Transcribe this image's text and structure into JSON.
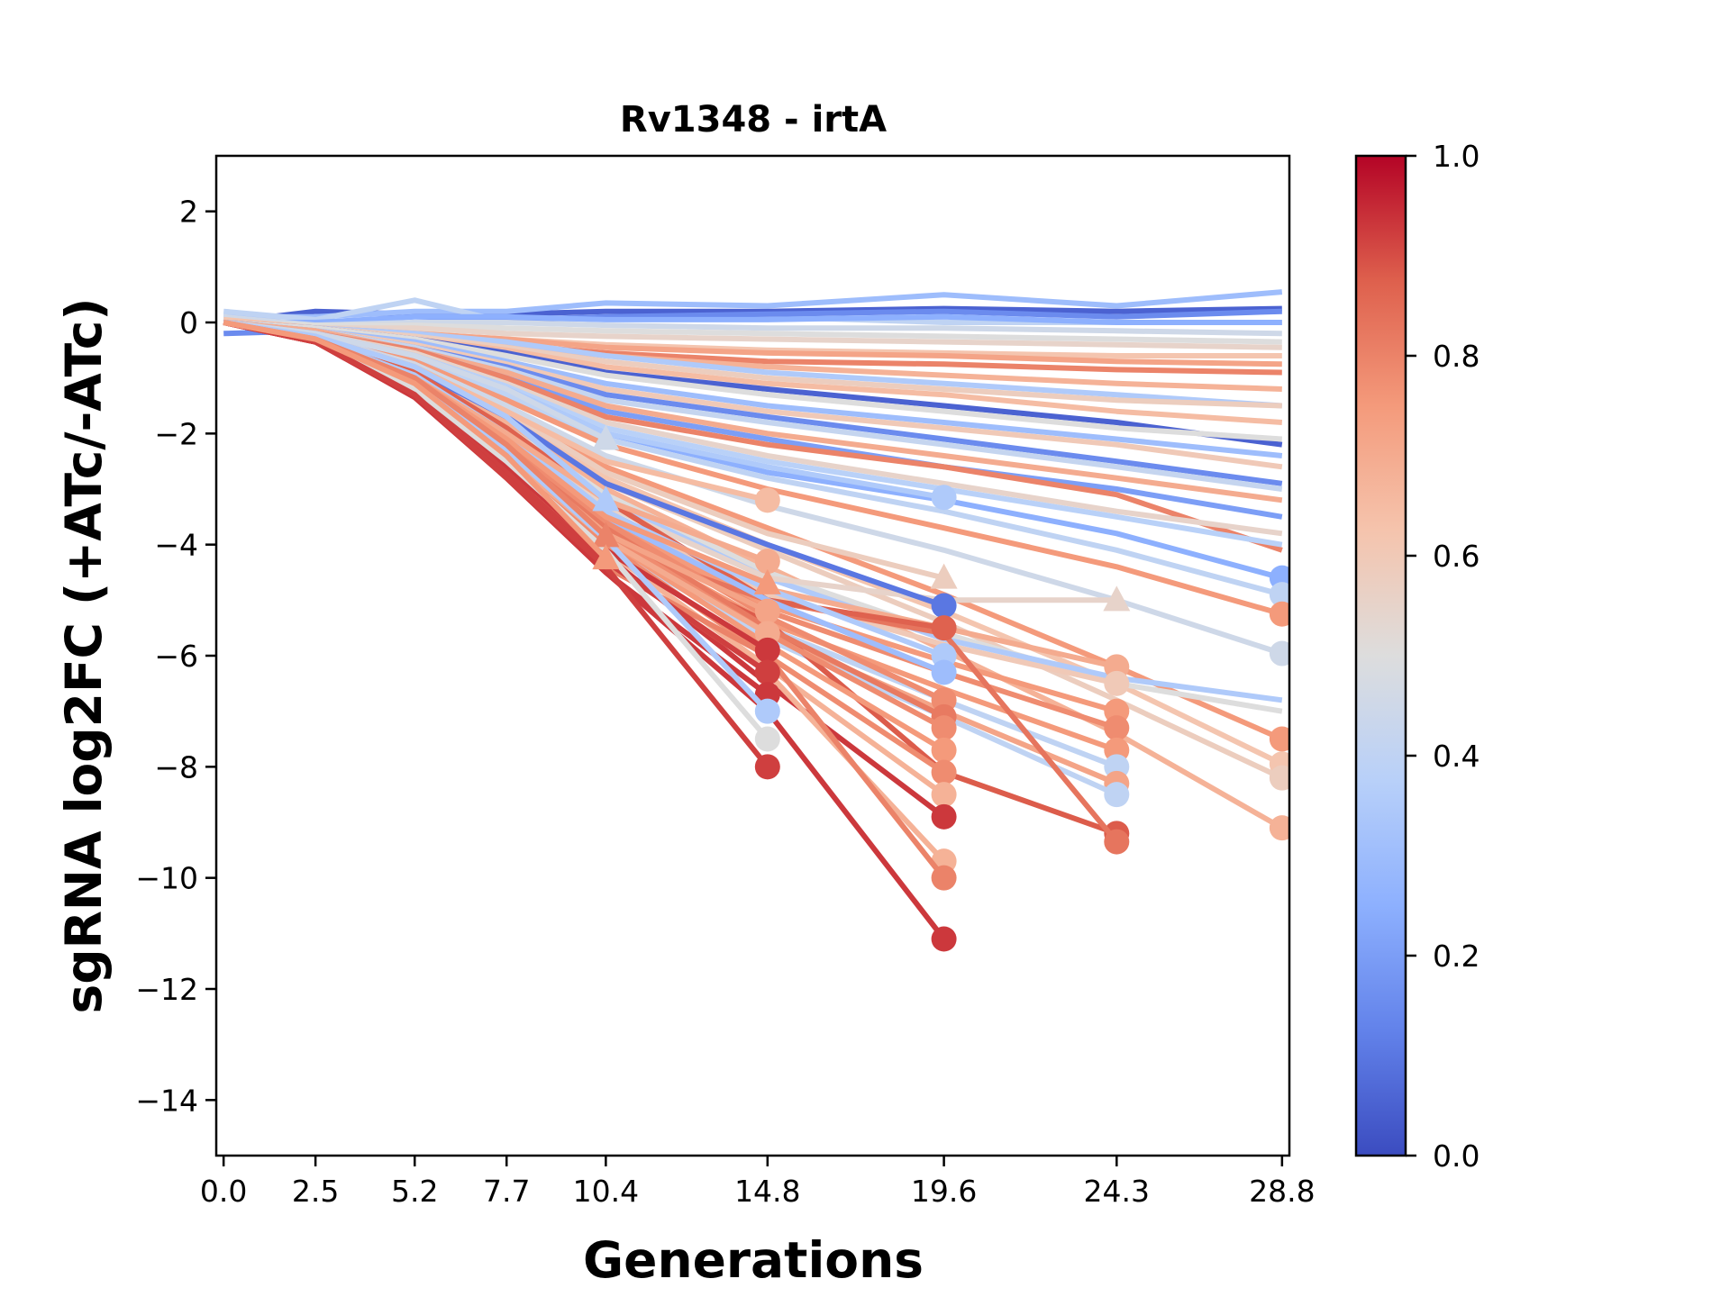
{
  "chart_data": {
    "type": "line",
    "title": "Rv1348 - irtA",
    "xlabel": "Generations",
    "ylabel": "sgRNA log2FC (+ATc/-ATc)",
    "x": [
      0.0,
      2.5,
      5.2,
      7.7,
      10.4,
      14.8,
      19.6,
      24.3,
      28.8
    ],
    "xticks": [
      "0.0",
      "2.5",
      "5.2",
      "7.7",
      "10.4",
      "14.8",
      "19.6",
      "24.3",
      "28.8"
    ],
    "yticks": [
      2,
      0,
      -2,
      -4,
      -6,
      -8,
      -10,
      -12,
      -14
    ],
    "ytick_labels": [
      "2",
      "0",
      "−2",
      "−4",
      "−6",
      "−8",
      "−10",
      "−12",
      "−14"
    ],
    "xlim": [
      -0.2,
      29.0
    ],
    "ylim": [
      -15,
      3
    ],
    "grid": false,
    "colorbar": {
      "colormap": "coolwarm",
      "range": [
        0.0,
        1.0
      ],
      "ticks": [
        0.0,
        0.2,
        0.4,
        0.6,
        0.8,
        1.0
      ],
      "tick_labels": [
        "0.0",
        "0.2",
        "0.4",
        "0.6",
        "0.8",
        "1.0"
      ],
      "placement": "right"
    },
    "series_note": "Each series is one sgRNA; color value is the colormap value; the final point carries a marker (triangle or circle) when the series ends early.",
    "series": [
      {
        "c": 0.05,
        "values": [
          0.0,
          0.2,
          0.15,
          0.15,
          0.2,
          0.2,
          0.25,
          0.2,
          0.25
        ]
      },
      {
        "c": 0.3,
        "values": [
          0.1,
          0.1,
          0.2,
          0.2,
          0.35,
          0.3,
          0.5,
          0.3,
          0.55
        ]
      },
      {
        "c": 0.4,
        "values": [
          0.2,
          0.05,
          0.4,
          0.0,
          0.1,
          0.1,
          0.0,
          0.0,
          0.0
        ]
      },
      {
        "c": 0.15,
        "values": [
          -0.2,
          -0.15,
          0.0,
          0.05,
          0.1,
          0.15,
          0.2,
          0.1,
          0.2
        ]
      },
      {
        "c": 0.25,
        "values": [
          0.0,
          0.0,
          0.1,
          0.1,
          0.05,
          0.05,
          0.1,
          0.0,
          0.0
        ]
      },
      {
        "c": 0.45,
        "values": [
          0.1,
          -0.05,
          0.0,
          0.0,
          -0.05,
          -0.1,
          -0.1,
          -0.15,
          -0.2
        ]
      },
      {
        "c": 0.5,
        "values": [
          0.0,
          -0.05,
          -0.05,
          -0.1,
          -0.15,
          -0.2,
          -0.25,
          -0.3,
          -0.35
        ]
      },
      {
        "c": 0.55,
        "values": [
          0.0,
          -0.1,
          -0.1,
          -0.2,
          -0.25,
          -0.3,
          -0.35,
          -0.4,
          -0.45
        ]
      },
      {
        "c": 0.62,
        "values": [
          0.05,
          -0.1,
          -0.2,
          -0.3,
          -0.4,
          -0.5,
          -0.55,
          -0.6,
          -0.6
        ]
      },
      {
        "c": 0.72,
        "values": [
          0.0,
          -0.1,
          -0.2,
          -0.3,
          -0.45,
          -0.55,
          -0.6,
          -0.7,
          -0.75
        ]
      },
      {
        "c": 0.8,
        "values": [
          0.0,
          -0.1,
          -0.25,
          -0.4,
          -0.55,
          -0.7,
          -0.75,
          -0.85,
          -0.9
        ]
      },
      {
        "c": 0.68,
        "values": [
          0.0,
          -0.1,
          -0.25,
          -0.4,
          -0.6,
          -0.8,
          -0.95,
          -1.1,
          -1.2
        ]
      },
      {
        "c": 0.35,
        "values": [
          0.0,
          -0.1,
          -0.2,
          -0.35,
          -0.6,
          -0.9,
          -1.1,
          -1.3,
          -1.5
        ]
      },
      {
        "c": 0.58,
        "values": [
          0.0,
          -0.1,
          -0.25,
          -0.45,
          -0.7,
          -1.0,
          -1.2,
          -1.4,
          -1.5
        ]
      },
      {
        "c": 0.65,
        "values": [
          0.0,
          -0.1,
          -0.3,
          -0.5,
          -0.8,
          -1.1,
          -1.3,
          -1.6,
          -1.8
        ]
      },
      {
        "c": 0.05,
        "values": [
          0.0,
          -0.1,
          -0.3,
          -0.55,
          -0.9,
          -1.2,
          -1.5,
          -1.8,
          -2.2
        ]
      },
      {
        "c": 0.5,
        "values": [
          0.0,
          -0.1,
          -0.3,
          -0.6,
          -0.95,
          -1.3,
          -1.6,
          -1.9,
          -2.1
        ]
      },
      {
        "c": 0.3,
        "values": [
          0.0,
          -0.15,
          -0.35,
          -0.7,
          -1.1,
          -1.5,
          -1.8,
          -2.1,
          -2.4
        ]
      },
      {
        "c": 0.6,
        "values": [
          0.0,
          -0.15,
          -0.4,
          -0.75,
          -1.2,
          -1.6,
          -1.9,
          -2.2,
          -2.6
        ]
      },
      {
        "c": 0.15,
        "values": [
          0.0,
          -0.15,
          -0.45,
          -0.8,
          -1.3,
          -1.7,
          -2.1,
          -2.5,
          -2.9
        ]
      },
      {
        "c": 0.42,
        "values": [
          0.0,
          -0.15,
          -0.45,
          -0.85,
          -1.4,
          -1.8,
          -2.2,
          -2.6,
          -3.0
        ]
      },
      {
        "c": 0.7,
        "values": [
          0.0,
          -0.15,
          -0.5,
          -0.9,
          -1.5,
          -2.0,
          -2.4,
          -2.8,
          -3.2
        ]
      },
      {
        "c": 0.2,
        "values": [
          0.0,
          -0.2,
          -0.5,
          -1.0,
          -1.6,
          -2.1,
          -2.6,
          -3.0,
          -3.5
        ]
      },
      {
        "c": 0.8,
        "values": [
          0.0,
          -0.2,
          -0.5,
          -1.0,
          -1.7,
          -2.2,
          -2.6,
          -3.1,
          -4.1
        ]
      },
      {
        "c": 0.55,
        "values": [
          0.0,
          -0.2,
          -0.55,
          -1.1,
          -1.8,
          -2.4,
          -2.9,
          -3.4,
          -3.8
        ]
      },
      {
        "c": 0.38,
        "values": [
          0.0,
          -0.2,
          -0.6,
          -1.15,
          -1.9,
          -2.5,
          -3.0,
          -3.5,
          -4.0
        ]
      },
      {
        "c": 0.25,
        "values": [
          0.0,
          -0.2,
          -0.6,
          -1.2,
          -2.0,
          -2.7,
          -3.2,
          -3.8,
          -4.6
        ],
        "marker": "circle"
      },
      {
        "c": 0.4,
        "values": [
          0.0,
          -0.2,
          -0.65,
          -1.3,
          -2.1,
          -2.8,
          -3.4,
          -4.1,
          -4.9
        ],
        "marker": "circle"
      },
      {
        "c": 0.75,
        "values": [
          0.0,
          -0.2,
          -0.7,
          -1.4,
          -2.2,
          -3.0,
          -3.7,
          -4.4,
          -5.25
        ],
        "marker": "circle"
      },
      {
        "c": 0.45,
        "values": [
          0.0,
          -0.25,
          -0.75,
          -1.5,
          -2.4,
          -3.3,
          -4.1,
          -5.0,
          -5.96
        ],
        "marker": "circle"
      },
      {
        "c": 0.75,
        "values": [
          0.0,
          -0.25,
          -0.8,
          -1.6,
          -2.6,
          -3.7,
          -4.9,
          -6.2,
          -7.5
        ],
        "marker": "circle"
      },
      {
        "c": 0.62,
        "values": [
          0.0,
          -0.25,
          -0.85,
          -1.7,
          -2.8,
          -4.0,
          -5.2,
          -6.5,
          -7.95
        ],
        "marker": "circle"
      },
      {
        "c": 0.58,
        "values": [
          0.0,
          -0.25,
          -0.85,
          -1.75,
          -2.9,
          -4.1,
          -5.4,
          -6.8,
          -8.2
        ],
        "marker": "circle"
      },
      {
        "c": 0.68,
        "values": [
          0.0,
          -0.25,
          -0.9,
          -1.8,
          -3.0,
          -4.4,
          -5.9,
          -7.4,
          -9.1
        ],
        "marker": "circle"
      },
      {
        "c": 0.5,
        "values": [
          0.0,
          -0.25,
          -0.9,
          -1.9,
          -3.1,
          -4.5,
          -5.6,
          -6.5,
          -7.0
        ]
      },
      {
        "c": 0.35,
        "values": [
          0.0,
          -0.25,
          -0.95,
          -1.95,
          -3.2,
          -4.6,
          -5.7,
          -6.4,
          -6.8
        ]
      },
      {
        "c": 0.55,
        "values": [
          0.0,
          -0.25,
          -0.95,
          -2.0,
          -3.3,
          -4.6,
          -5.0,
          -5.0
        ],
        "marker": "triangle"
      },
      {
        "c": 0.7,
        "values": [
          0.0,
          -0.3,
          -1.0,
          -2.1,
          -3.4,
          -4.8,
          -5.5,
          -6.2
        ],
        "marker": "circle"
      },
      {
        "c": 0.6,
        "values": [
          0.0,
          -0.3,
          -1.0,
          -2.1,
          -3.4,
          -4.9,
          -5.8,
          -6.5
        ],
        "marker": "circle"
      },
      {
        "c": 0.75,
        "values": [
          0.0,
          -0.3,
          -1.05,
          -2.2,
          -3.6,
          -5.1,
          -6.1,
          -7.0
        ],
        "marker": "circle"
      },
      {
        "c": 0.78,
        "values": [
          0.0,
          -0.3,
          -1.1,
          -2.25,
          -3.7,
          -5.2,
          -6.3,
          -7.3
        ],
        "marker": "circle"
      },
      {
        "c": 0.75,
        "values": [
          0.0,
          -0.3,
          -1.1,
          -2.3,
          -3.8,
          -5.4,
          -6.6,
          -7.7
        ],
        "marker": "circle"
      },
      {
        "c": 0.4,
        "values": [
          0.0,
          -0.3,
          -1.15,
          -2.35,
          -3.8,
          -5.5,
          -6.8,
          -8.0
        ],
        "marker": "circle"
      },
      {
        "c": 0.72,
        "values": [
          0.0,
          -0.3,
          -1.15,
          -2.4,
          -3.9,
          -5.6,
          -7.0,
          -8.3
        ],
        "marker": "circle"
      },
      {
        "c": 0.4,
        "values": [
          0.0,
          -0.3,
          -1.2,
          -2.45,
          -4.0,
          -5.7,
          -7.1,
          -8.5
        ],
        "marker": "circle"
      },
      {
        "c": 0.88,
        "values": [
          0.0,
          -0.3,
          -1.2,
          -2.5,
          -4.0,
          -5.4,
          -8.1,
          -9.2
        ],
        "marker": "circle"
      },
      {
        "c": 0.83,
        "values": [
          0.0,
          -0.3,
          -1.2,
          -2.5,
          -4.0,
          -5.0,
          -5.6,
          -9.35
        ],
        "marker": "circle"
      },
      {
        "c": 0.35,
        "values": [
          0.0,
          -0.2,
          -0.6,
          -1.2,
          -2.0,
          -2.6,
          -3.15
        ],
        "marker": "circle"
      },
      {
        "c": 0.58,
        "values": [
          0.0,
          -0.25,
          -0.8,
          -1.6,
          -2.7,
          -3.8,
          -4.6
        ],
        "marker": "triangle"
      },
      {
        "c": 0.1,
        "values": [
          0.0,
          -0.25,
          -0.85,
          -1.7,
          -2.9,
          -4.0,
          -5.1
        ],
        "marker": "circle"
      },
      {
        "c": 0.87,
        "values": [
          0.0,
          -0.3,
          -0.9,
          -1.9,
          -3.2,
          -5.0,
          -5.5
        ],
        "marker": "circle"
      },
      {
        "c": 0.35,
        "values": [
          0.0,
          -0.3,
          -0.95,
          -2.0,
          -3.4,
          -4.8,
          -6.0
        ],
        "marker": "circle"
      },
      {
        "c": 0.3,
        "values": [
          0.0,
          -0.3,
          -1.0,
          -2.1,
          -3.5,
          -5.0,
          -6.3
        ],
        "marker": "circle"
      },
      {
        "c": 0.78,
        "values": [
          0.0,
          -0.3,
          -1.05,
          -2.2,
          -3.6,
          -5.3,
          -6.8
        ],
        "marker": "circle"
      },
      {
        "c": 0.82,
        "values": [
          0.0,
          -0.3,
          -1.1,
          -2.3,
          -3.7,
          -5.5,
          -7.1
        ],
        "marker": "circle"
      },
      {
        "c": 0.78,
        "values": [
          0.0,
          -0.3,
          -1.1,
          -2.35,
          -3.8,
          -5.6,
          -7.3
        ],
        "marker": "circle"
      },
      {
        "c": 0.75,
        "values": [
          0.0,
          -0.3,
          -1.15,
          -2.4,
          -3.9,
          -5.8,
          -7.7
        ],
        "marker": "circle"
      },
      {
        "c": 0.78,
        "values": [
          0.0,
          -0.35,
          -1.2,
          -2.5,
          -4.0,
          -6.0,
          -8.1
        ],
        "marker": "circle"
      },
      {
        "c": 0.68,
        "values": [
          0.0,
          -0.35,
          -1.2,
          -2.55,
          -4.1,
          -6.2,
          -8.5
        ],
        "marker": "circle"
      },
      {
        "c": 0.93,
        "values": [
          0.0,
          -0.35,
          -1.25,
          -2.6,
          -4.2,
          -6.5,
          -8.9
        ],
        "marker": "circle"
      },
      {
        "c": 0.68,
        "values": [
          0.0,
          -0.35,
          -1.3,
          -2.7,
          -4.3,
          -6.3,
          -9.7
        ],
        "marker": "circle"
      },
      {
        "c": 0.8,
        "values": [
          0.0,
          -0.35,
          -1.3,
          -2.7,
          -4.4,
          -6.0,
          -10.0
        ],
        "marker": "circle"
      },
      {
        "c": 0.93,
        "values": [
          0.0,
          -0.35,
          -1.35,
          -2.8,
          -4.5,
          -7.0,
          -11.1
        ],
        "marker": "circle"
      },
      {
        "c": 0.65,
        "values": [
          0.0,
          -0.25,
          -0.8,
          -1.6,
          -2.5,
          -3.2
        ],
        "marker": "circle"
      },
      {
        "c": 0.7,
        "values": [
          0.0,
          -0.3,
          -1.0,
          -2.0,
          -3.2,
          -4.3
        ],
        "marker": "circle"
      },
      {
        "c": 0.75,
        "values": [
          0.0,
          -0.3,
          -1.0,
          -2.1,
          -3.5,
          -4.7
        ],
        "marker": "triangle"
      },
      {
        "c": 0.72,
        "values": [
          0.0,
          -0.3,
          -1.1,
          -2.3,
          -3.8,
          -5.2
        ],
        "marker": "circle"
      },
      {
        "c": 0.7,
        "values": [
          0.0,
          -0.3,
          -1.15,
          -2.4,
          -3.9,
          -5.6
        ],
        "marker": "circle"
      },
      {
        "c": 0.93,
        "values": [
          0.0,
          -0.35,
          -1.2,
          -2.6,
          -4.1,
          -5.9
        ],
        "marker": "circle"
      },
      {
        "c": 0.92,
        "values": [
          0.0,
          -0.35,
          -1.25,
          -2.7,
          -4.3,
          -6.3
        ],
        "marker": "circle"
      },
      {
        "c": 0.93,
        "values": [
          0.0,
          -0.35,
          -1.3,
          -2.8,
          -4.5,
          -6.7
        ],
        "marker": "circle"
      },
      {
        "c": 0.35,
        "values": [
          0.0,
          -0.3,
          -1.1,
          -2.3,
          -3.9,
          -7.0
        ],
        "marker": "circle"
      },
      {
        "c": 0.5,
        "values": [
          0.0,
          -0.3,
          -1.2,
          -2.5,
          -4.1,
          -7.5
        ],
        "marker": "circle"
      },
      {
        "c": 0.92,
        "values": [
          0.0,
          -0.35,
          -1.3,
          -2.8,
          -4.4,
          -8.0
        ],
        "marker": "circle"
      },
      {
        "c": 0.45,
        "values": [
          0.0,
          -0.2,
          -0.6,
          -1.2,
          -2.1
        ],
        "marker": "triangle"
      },
      {
        "c": 0.35,
        "values": [
          0.0,
          -0.25,
          -0.8,
          -1.7,
          -3.2
        ],
        "marker": "triangle"
      },
      {
        "c": 0.8,
        "values": [
          0.0,
          -0.3,
          -1.0,
          -2.2,
          -3.85
        ],
        "marker": "triangle"
      },
      {
        "c": 0.75,
        "values": [
          0.0,
          -0.3,
          -1.1,
          -2.4,
          -4.25
        ],
        "marker": "triangle"
      }
    ]
  }
}
